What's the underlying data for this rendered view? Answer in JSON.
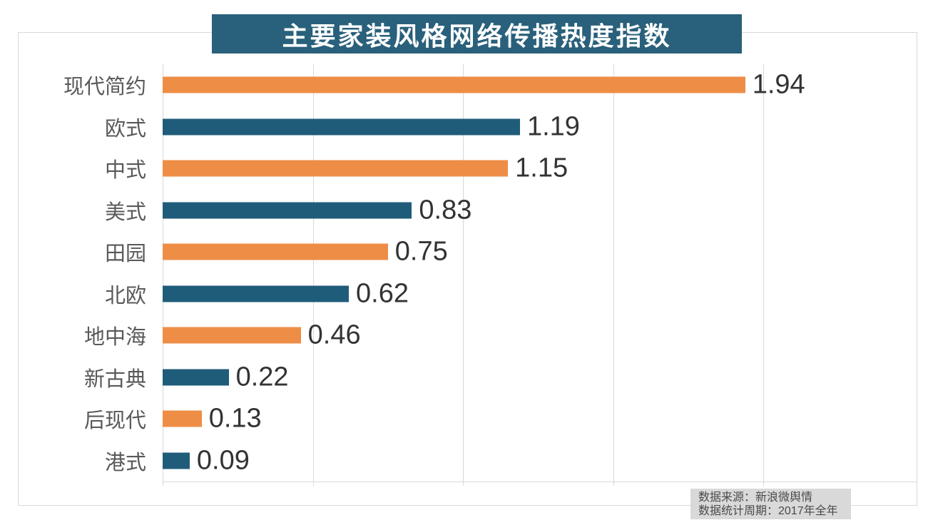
{
  "title": "主要家装风格网络传播热度指数",
  "colors": {
    "title_bg": "#29607b",
    "bar_orange": "#ee8d46",
    "bar_teal": "#1f5c7a",
    "grid": "#d9d9d9",
    "category_label": "#595959",
    "value_label": "#333333",
    "source_bg": "#d9d9d9",
    "source_text": "#4a4a4a"
  },
  "source": {
    "line1": "数据来源：新浪微舆情",
    "line2": "数据统计周期：2017年全年"
  },
  "chart_data": {
    "type": "bar",
    "orientation": "horizontal",
    "title": "主要家装风格网络传播热度指数",
    "categories": [
      "现代简约",
      "欧式",
      "中式",
      "美式",
      "田园",
      "北欧",
      "地中海",
      "新古典",
      "后现代",
      "港式"
    ],
    "values": [
      1.94,
      1.19,
      1.15,
      0.83,
      0.75,
      0.62,
      0.46,
      0.22,
      0.13,
      0.09
    ],
    "value_labels": [
      "1.94",
      "1.19",
      "1.15",
      "0.83",
      "0.75",
      "0.62",
      "0.46",
      "0.22",
      "0.13",
      "0.09"
    ],
    "bar_color_sequence": [
      "#ee8d46",
      "#1f5c7a"
    ],
    "xlim": [
      0,
      2.5
    ],
    "gridline_step": 0.5,
    "grid": true,
    "legend": false,
    "xlabel": "",
    "ylabel": ""
  }
}
